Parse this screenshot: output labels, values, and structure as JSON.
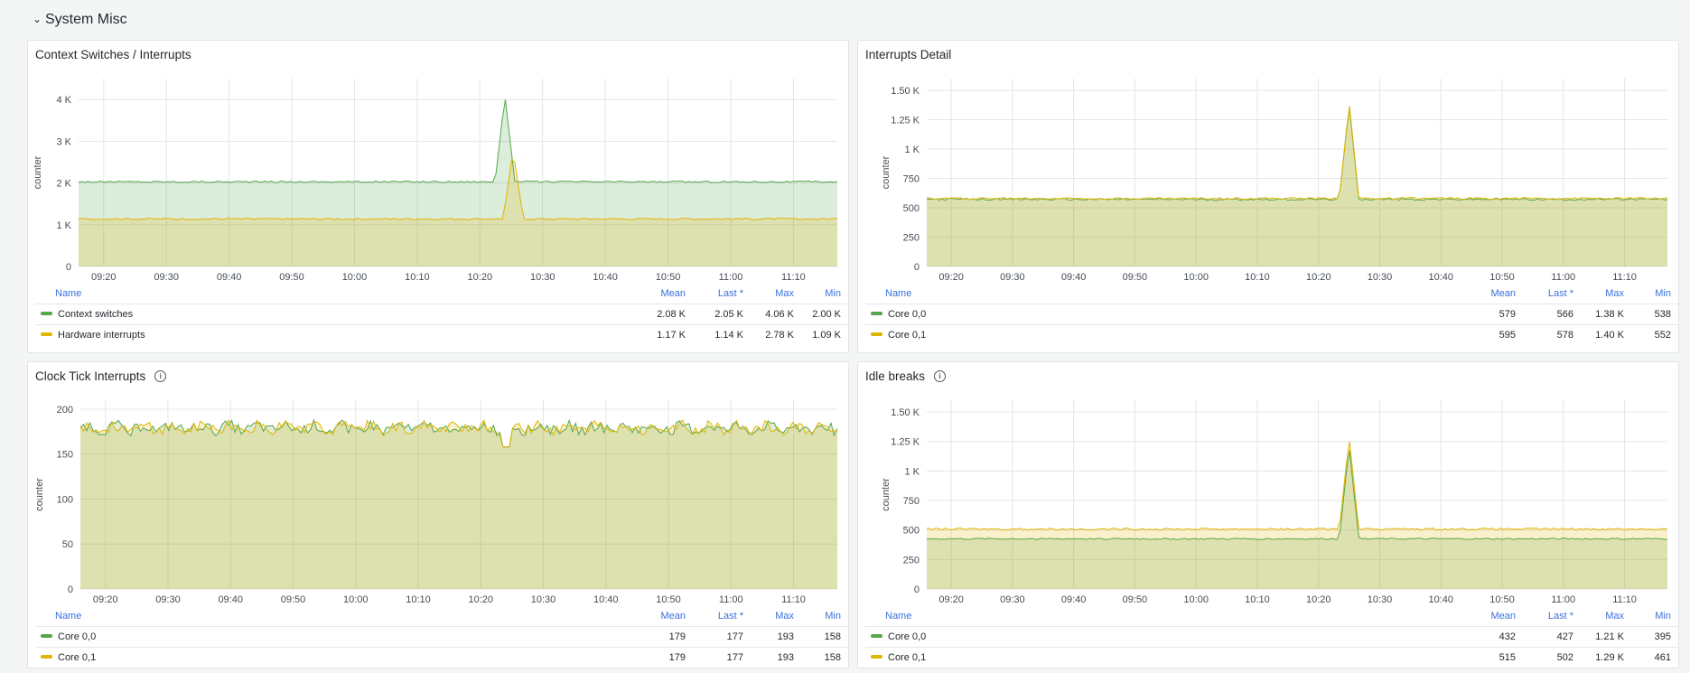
{
  "row": {
    "title": "System Misc",
    "chevron_icon": "chevron-down-icon"
  },
  "colors": {
    "green": "#56a64b",
    "yellow": "#e0b400",
    "green_fill": "rgba(86,166,75,0.2)",
    "yellow_fill": "rgba(224,180,0,0.2)"
  },
  "legend_headers": {
    "name": "Name",
    "mean": "Mean",
    "last": "Last *",
    "max": "Max",
    "min": "Min"
  },
  "panels": [
    {
      "title": "Context Switches / Interrupts",
      "has_info": false,
      "ylabel": "counter",
      "series": [
        {
          "name": "Context switches",
          "color": "green",
          "mean": "2.08 K",
          "last": "2.05 K",
          "max": "4.06 K",
          "min": "2.00 K"
        },
        {
          "name": "Hardware interrupts",
          "color": "yellow",
          "mean": "1.17 K",
          "last": "1.14 K",
          "max": "2.78 K",
          "min": "1.09 K"
        }
      ]
    },
    {
      "title": "Interrupts Detail",
      "has_info": false,
      "ylabel": "counter",
      "series": [
        {
          "name": "Core 0,0",
          "color": "green",
          "mean": "579",
          "last": "566",
          "max": "1.38 K",
          "min": "538"
        },
        {
          "name": "Core 0,1",
          "color": "yellow",
          "mean": "595",
          "last": "578",
          "max": "1.40 K",
          "min": "552"
        }
      ]
    },
    {
      "title": "Clock Tick Interrupts",
      "has_info": true,
      "ylabel": "counter",
      "series": [
        {
          "name": "Core 0,0",
          "color": "green",
          "mean": "179",
          "last": "177",
          "max": "193",
          "min": "158"
        },
        {
          "name": "Core 0,1",
          "color": "yellow",
          "mean": "179",
          "last": "177",
          "max": "193",
          "min": "158"
        }
      ]
    },
    {
      "title": "Idle breaks",
      "has_info": true,
      "ylabel": "counter",
      "series": [
        {
          "name": "Core 0,0",
          "color": "green",
          "mean": "432",
          "last": "427",
          "max": "1.21 K",
          "min": "395"
        },
        {
          "name": "Core 0,1",
          "color": "yellow",
          "mean": "515",
          "last": "502",
          "max": "1.29 K",
          "min": "461"
        }
      ]
    }
  ],
  "chart_data": [
    {
      "type": "area",
      "title": "Context Switches / Interrupts",
      "ylabel": "counter",
      "x_ticks": [
        "09:20",
        "09:30",
        "09:40",
        "09:50",
        "10:00",
        "10:10",
        "10:20",
        "10:30",
        "10:40",
        "10:50",
        "11:00",
        "11:10"
      ],
      "y_ticks": [
        "0",
        "1 K",
        "2 K",
        "3 K",
        "4 K"
      ],
      "ylim": [
        0,
        4500
      ],
      "x_range": [
        "09:16",
        "11:17"
      ],
      "spike_x": "10:24",
      "series": [
        {
          "name": "Context switches",
          "color": "green",
          "base": 2030,
          "noise": 20,
          "spike": 4060
        },
        {
          "name": "Hardware interrupts",
          "color": "yellow",
          "base": 1140,
          "noise": 20,
          "spike": 2780,
          "spike_offset_min": 1.3
        }
      ]
    },
    {
      "type": "area",
      "title": "Interrupts Detail",
      "ylabel": "counter",
      "x_ticks": [
        "09:20",
        "09:30",
        "09:40",
        "09:50",
        "10:00",
        "10:10",
        "10:20",
        "10:30",
        "10:40",
        "10:50",
        "11:00",
        "11:10"
      ],
      "y_ticks": [
        "0",
        "250",
        "500",
        "750",
        "1 K",
        "1.25 K",
        "1.50 K"
      ],
      "ylim": [
        0,
        1600
      ],
      "x_range": [
        "09:16",
        "11:17"
      ],
      "spike_x": "10:25",
      "series": [
        {
          "name": "Core 0,0",
          "color": "green",
          "base": 572,
          "noise": 8,
          "spike": 1380
        },
        {
          "name": "Core 0,1",
          "color": "yellow",
          "base": 580,
          "noise": 8,
          "spike": 1400
        }
      ]
    },
    {
      "type": "area",
      "title": "Clock Tick Interrupts",
      "ylabel": "counter",
      "x_ticks": [
        "09:20",
        "09:30",
        "09:40",
        "09:50",
        "10:00",
        "10:10",
        "10:20",
        "10:30",
        "10:40",
        "10:50",
        "11:00",
        "11:10"
      ],
      "y_ticks": [
        "0",
        "50",
        "100",
        "150",
        "200"
      ],
      "ylim": [
        0,
        210
      ],
      "x_range": [
        "09:16",
        "11:17"
      ],
      "spike_x": "",
      "series": [
        {
          "name": "Core 0,0",
          "color": "green",
          "base": 179,
          "noise": 6,
          "spike": 193
        },
        {
          "name": "Core 0,1",
          "color": "yellow",
          "base": 179,
          "noise": 6,
          "spike": 193
        }
      ]
    },
    {
      "type": "area",
      "title": "Idle breaks",
      "ylabel": "counter",
      "x_ticks": [
        "09:20",
        "09:30",
        "09:40",
        "09:50",
        "10:00",
        "10:10",
        "10:20",
        "10:30",
        "10:40",
        "10:50",
        "11:00",
        "11:10"
      ],
      "y_ticks": [
        "0",
        "250",
        "500",
        "750",
        "1 K",
        "1.25 K",
        "1.50 K"
      ],
      "ylim": [
        0,
        1600
      ],
      "x_range": [
        "09:16",
        "11:17"
      ],
      "spike_x": "10:25",
      "series": [
        {
          "name": "Core 0,0",
          "color": "green",
          "base": 425,
          "noise": 6,
          "spike": 1210
        },
        {
          "name": "Core 0,1",
          "color": "yellow",
          "base": 508,
          "noise": 8,
          "spike": 1290
        }
      ]
    }
  ]
}
